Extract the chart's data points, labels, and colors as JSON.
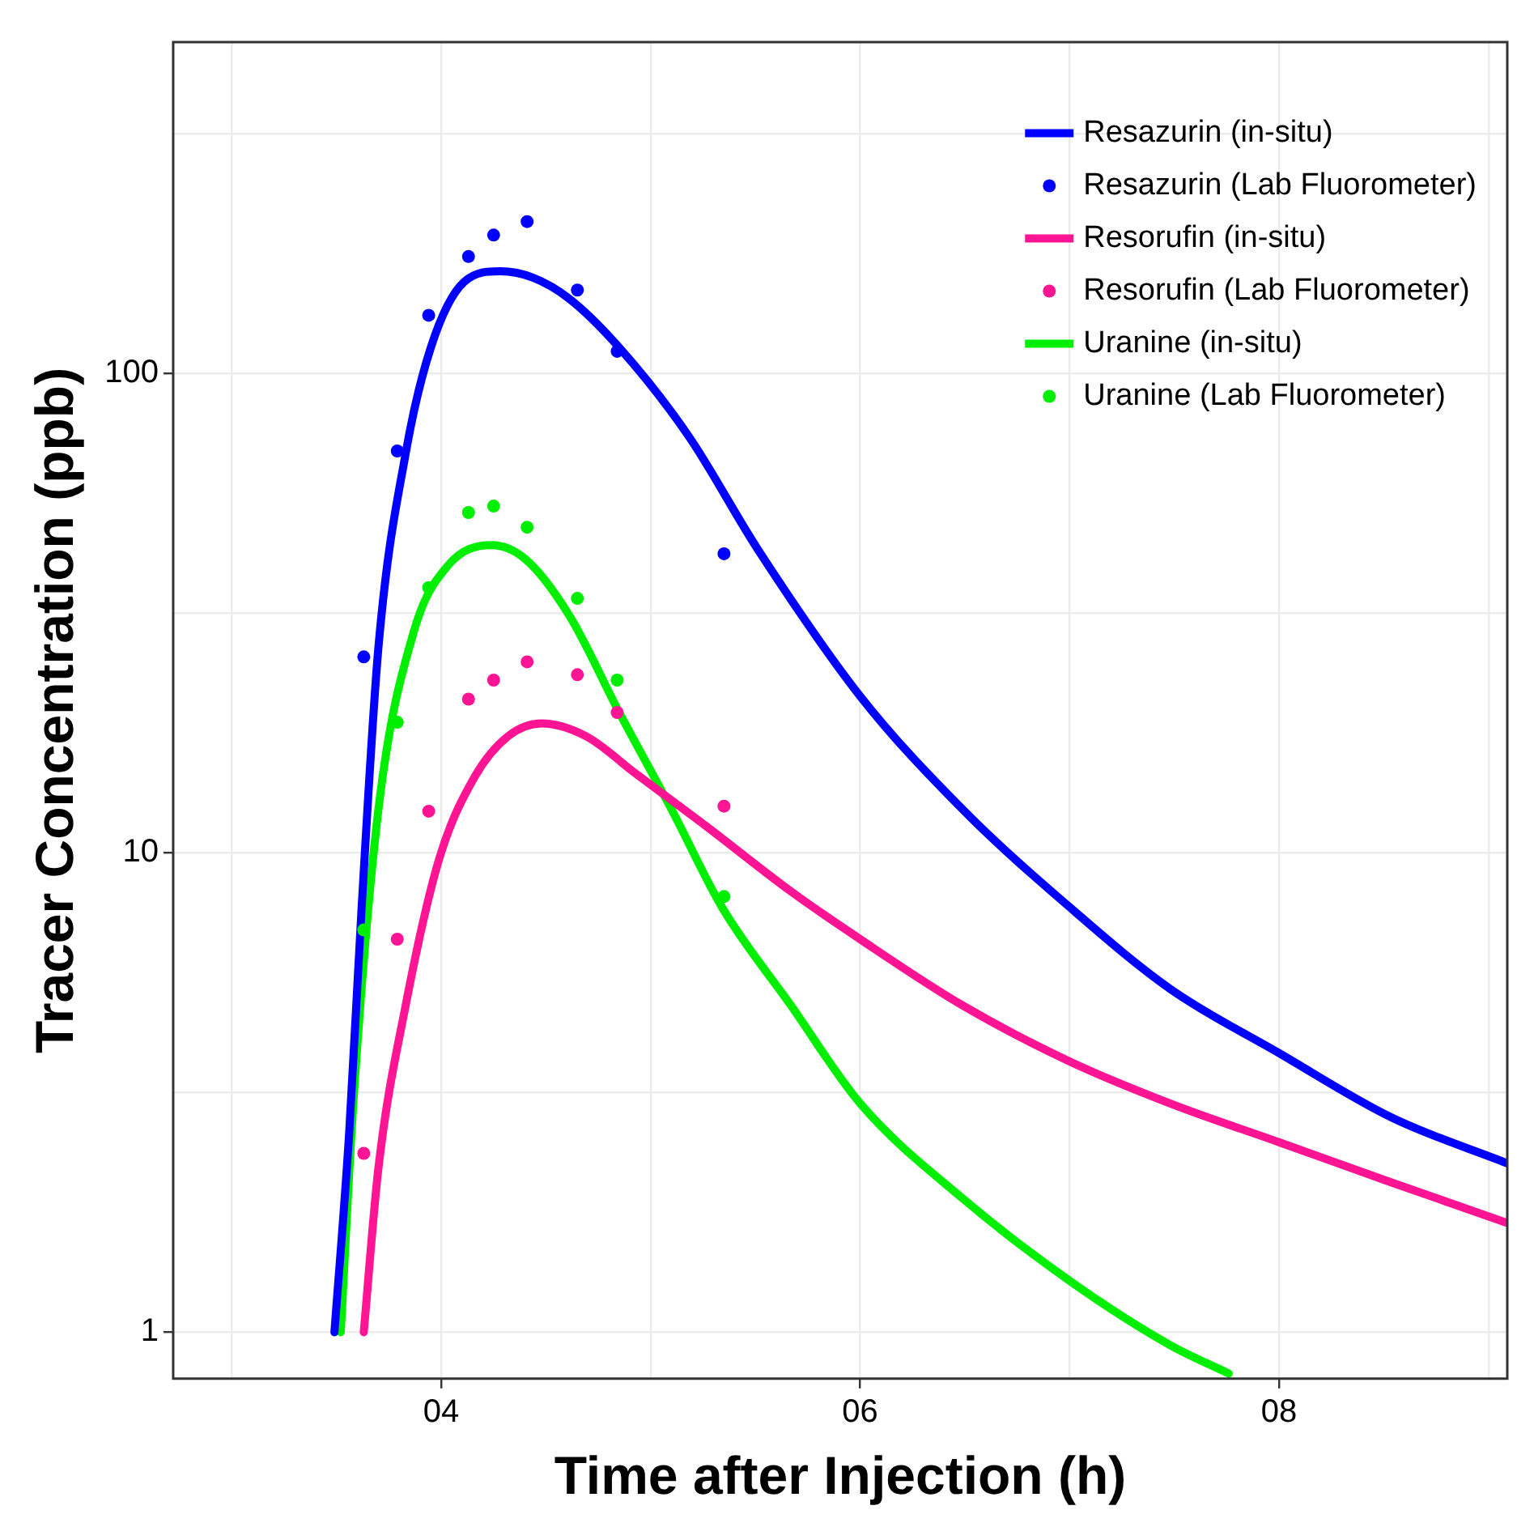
{
  "chart_data": {
    "type": "line",
    "xlabel": "Time after Injection (h)",
    "ylabel": "Tracer Concentration (ppb)",
    "log": "y",
    "grid": true,
    "legend": "top right",
    "xlim": [
      2.72,
      9.09
    ],
    "xticks": [
      {
        "value": 3,
        "label": null
      },
      {
        "value": 4,
        "label": "04"
      },
      {
        "value": 5,
        "label": null
      },
      {
        "value": 6,
        "label": "06"
      },
      {
        "value": 7,
        "label": null
      },
      {
        "value": 8,
        "label": "08"
      },
      {
        "value": 9,
        "label": null
      }
    ],
    "ylim": [
      0.8,
      490
    ],
    "yticks": [
      1,
      {
        "value": 3.16,
        "label": null
      },
      10,
      {
        "value": 31.6,
        "label": null
      },
      100,
      {
        "value": 316,
        "label": null
      }
    ],
    "series": [
      {
        "name": "Resazurin (in-situ)",
        "marker": "none",
        "color": "#0000ff",
        "x": [
          3.49,
          3.56,
          3.62,
          3.7,
          3.83,
          3.95,
          4.11,
          4.28,
          4.44,
          4.61,
          4.85,
          5.18,
          5.51,
          6.0,
          6.49,
          7.0,
          7.48,
          8.0,
          8.54,
          9.09
        ],
        "values": [
          1,
          2.59,
          7.7,
          26.8,
          68,
          113,
          155,
          163,
          158,
          143,
          113,
          74,
          43,
          21.2,
          12.3,
          7.7,
          5.2,
          3.82,
          2.8,
          2.25
        ]
      },
      {
        "name": "Resazurin (Lab Fluorometer)",
        "type": "scatter",
        "marker": "circle",
        "color": "#0000ff",
        "x": [
          3.63,
          3.79,
          3.94,
          4.13,
          4.25,
          4.41,
          4.65,
          4.84,
          5.35
        ],
        "values": [
          25.6,
          68.8,
          132,
          175,
          194,
          207,
          149,
          111,
          42
        ]
      },
      {
        "name": "Resorufin (in-situ)",
        "marker": "none",
        "color": "#ff1493",
        "x": [
          3.63,
          3.7,
          3.83,
          3.99,
          4.16,
          4.32,
          4.48,
          4.69,
          4.93,
          5.26,
          5.67,
          6.0,
          6.49,
          7.0,
          7.48,
          8.0,
          8.54,
          9.09
        ],
        "values": [
          1,
          2.2,
          4.8,
          9.7,
          14.4,
          17.5,
          18.6,
          17.5,
          14.6,
          11.4,
          8.3,
          6.6,
          4.8,
          3.67,
          3.0,
          2.49,
          2.05,
          1.69
        ]
      },
      {
        "name": "Resorufin (Lab Fluorometer)",
        "type": "scatter",
        "marker": "circle",
        "color": "#ff1493",
        "x": [
          3.63,
          3.79,
          3.94,
          4.13,
          4.25,
          4.41,
          4.65,
          4.84,
          5.35
        ],
        "values": [
          2.36,
          6.6,
          12.2,
          20.9,
          22.9,
          25,
          23.5,
          19.6,
          12.5
        ]
      },
      {
        "name": "Uranine (in-situ)",
        "marker": "none",
        "color": "#00ee00",
        "x": [
          3.52,
          3.58,
          3.7,
          3.87,
          4.03,
          4.24,
          4.4,
          4.61,
          4.85,
          5.1,
          5.34,
          5.67,
          6.0,
          6.49,
          7.0,
          7.48,
          7.76
        ],
        "values": [
          1,
          3.0,
          12.3,
          29,
          39.6,
          43.8,
          41,
          31.3,
          19.6,
          12.3,
          7.7,
          4.8,
          3.0,
          1.9,
          1.28,
          0.94,
          0.82
        ]
      },
      {
        "name": "Uranine (Lab Fluorometer)",
        "type": "scatter",
        "marker": "circle",
        "color": "#00ee00",
        "x": [
          3.63,
          3.79,
          3.94,
          4.13,
          4.25,
          4.41,
          4.65,
          4.84,
          5.35
        ],
        "values": [
          6.9,
          18.7,
          35.7,
          51.2,
          52.8,
          47.7,
          33.9,
          22.9,
          8.1
        ]
      }
    ]
  }
}
